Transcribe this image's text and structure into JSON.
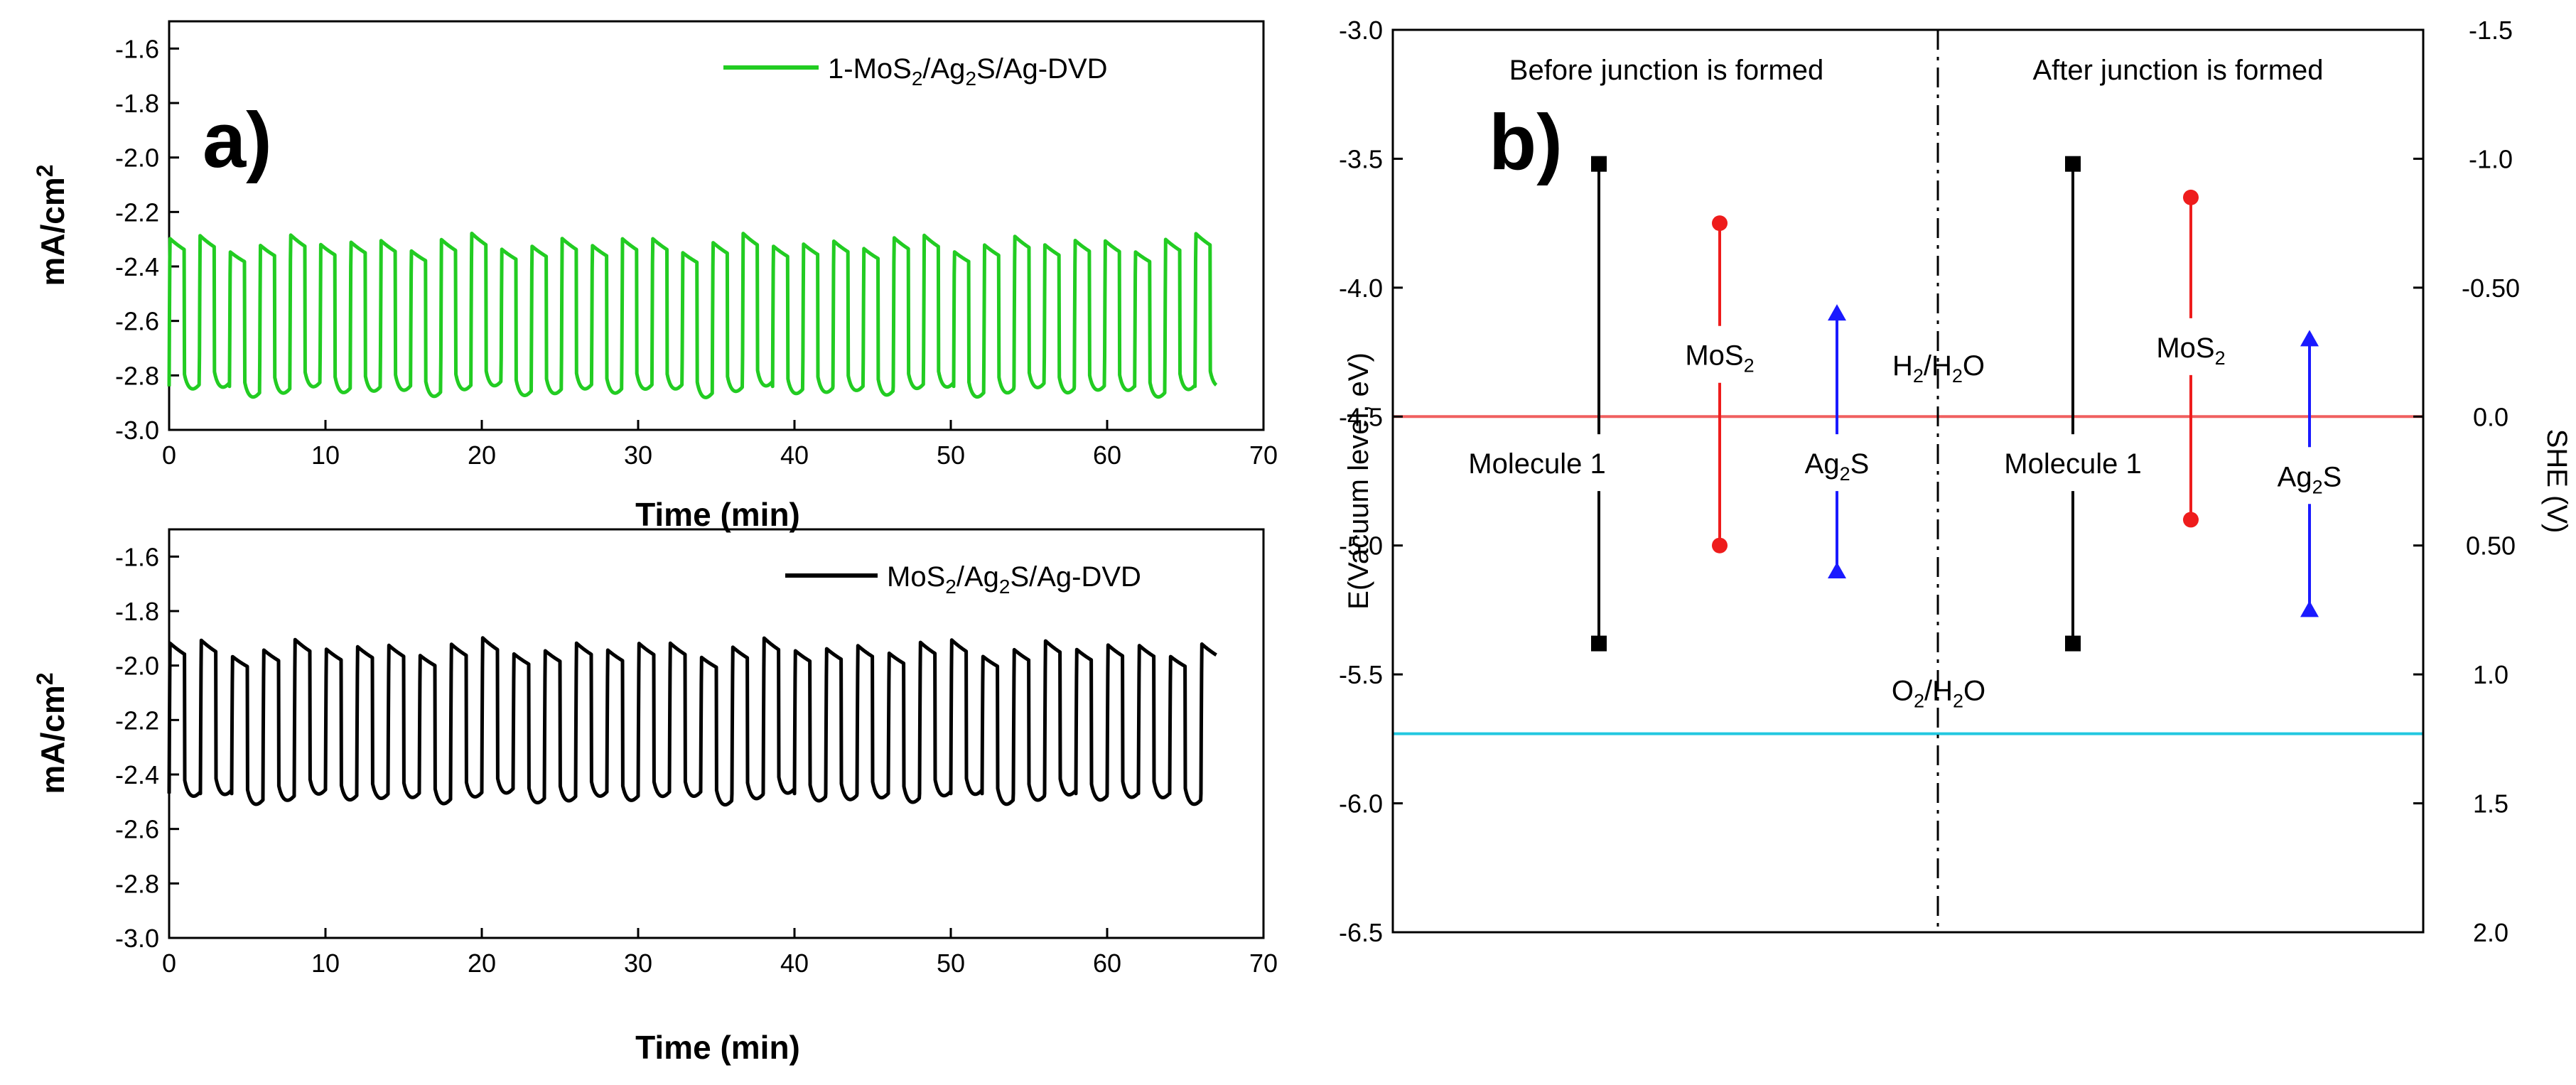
{
  "chart_data": [
    {
      "id": "a_top",
      "panel": "a)",
      "type": "line",
      "xlabel": "Time (min)",
      "ylabel": "mA/cm2",
      "ylabel_parts": [
        "mA/cm",
        "2"
      ],
      "xlim": [
        0,
        70
      ],
      "ylim": [
        -3.0,
        -1.5
      ],
      "xticks": [
        0,
        10,
        20,
        30,
        40,
        50,
        60,
        70
      ],
      "yticks": [
        -3.0,
        -2.8,
        -2.6,
        -2.4,
        -2.2,
        -2.0,
        -1.8,
        -1.6
      ],
      "ytick_labels": [
        "-3.0",
        "-2.8",
        "-2.6",
        "-2.4",
        "-2.2",
        "-2.0",
        "-1.8",
        "-1.6"
      ],
      "legend": "top-right",
      "series": [
        {
          "name": "1-MoS2/Ag2S/Ag-DVD",
          "name_parts": [
            [
              "1-MoS",
              "n"
            ],
            [
              "2",
              "s"
            ],
            [
              "/Ag",
              "n"
            ],
            [
              "2",
              "s"
            ],
            [
              "S/Ag-DVD",
              "n"
            ]
          ],
          "color": "#22cc22",
          "period_min": 1.93,
          "t_start": 0,
          "t_end": 67,
          "dark_level": -2.84,
          "light_level": -2.31
        }
      ]
    },
    {
      "id": "a_bottom",
      "type": "line",
      "xlabel": "Time (min)",
      "ylabel": "mA/cm2",
      "ylabel_parts": [
        "mA/cm",
        "2"
      ],
      "xlim": [
        0,
        70
      ],
      "ylim": [
        -3.0,
        -1.5
      ],
      "xticks": [
        0,
        10,
        20,
        30,
        40,
        50,
        60,
        70
      ],
      "yticks": [
        -3.0,
        -2.8,
        -2.6,
        -2.4,
        -2.2,
        -2.0,
        -1.8,
        -1.6
      ],
      "ytick_labels": [
        "-3.0",
        "-2.8",
        "-2.6",
        "-2.4",
        "-2.2",
        "-2.0",
        "-1.8",
        "-1.6"
      ],
      "legend": "top-right",
      "series": [
        {
          "name": "MoS2/Ag2S/Ag-DVD",
          "name_parts": [
            [
              "MoS",
              "n"
            ],
            [
              "2",
              "s"
            ],
            [
              "/Ag",
              "n"
            ],
            [
              "2",
              "s"
            ],
            [
              "S/Ag-DVD",
              "n"
            ]
          ],
          "color": "#000000",
          "period_min": 2.0,
          "t_start": 0,
          "t_end": 67,
          "dark_level": -2.47,
          "light_level": -1.93
        }
      ]
    },
    {
      "id": "b",
      "panel": "b)",
      "type": "energy-level diagram",
      "ylabel": "E(Vacuum level, eV)",
      "y2label": "SHE (V)",
      "ylim": [
        -6.5,
        -3.0
      ],
      "yticks": [
        -6.5,
        -6.0,
        -5.5,
        -5.0,
        -4.5,
        -4.0,
        -3.5,
        -3.0
      ],
      "ytick_labels": [
        "-6.5",
        "-6.0",
        "-5.5",
        "-5.0",
        "-4.5",
        "-4.0",
        "-3.5",
        "-3.0"
      ],
      "y2ticks": [
        2.0,
        1.5,
        1.0,
        0.5,
        0.0,
        -0.5,
        -1.0,
        -1.5
      ],
      "y2tick_labels": [
        "2.0",
        "1.5",
        "1.0",
        "0.50",
        "0.0",
        "-0.50",
        "-1.0",
        "-1.5"
      ],
      "region_labels": [
        "Before junction is formed",
        "After junction is formed"
      ],
      "reference_lines": [
        {
          "name": "H2/H2O",
          "name_parts": [
            [
              "H",
              "n"
            ],
            [
              "2",
              "s"
            ],
            [
              "/H",
              "n"
            ],
            [
              "2",
              "s"
            ],
            [
              "O",
              "n"
            ]
          ],
          "energy_eV": -4.5,
          "color": "#f06060"
        },
        {
          "name": "O2/H2O",
          "name_parts": [
            [
              "O",
              "n"
            ],
            [
              "2",
              "s"
            ],
            [
              "/H",
              "n"
            ],
            [
              "2",
              "s"
            ],
            [
              "O",
              "n"
            ]
          ],
          "energy_eV": -5.73,
          "color": "#22c8e0"
        }
      ],
      "levels": [
        {
          "name": "Molecule 1",
          "name_parts": [
            [
              "Molecule 1",
              "n"
            ]
          ],
          "region": "before",
          "top": -3.52,
          "bottom": -5.38,
          "color": "#000000",
          "marker": "square"
        },
        {
          "name": "MoS2",
          "name_parts": [
            [
              "MoS",
              "n"
            ],
            [
              "2",
              "s"
            ]
          ],
          "region": "before",
          "top": -3.75,
          "bottom": -5.0,
          "color": "#ee1c1c",
          "marker": "circle"
        },
        {
          "name": "Ag2S",
          "name_parts": [
            [
              "Ag",
              "n"
            ],
            [
              "2",
              "s"
            ],
            [
              "S",
              "n"
            ]
          ],
          "region": "before",
          "top": -4.1,
          "bottom": -5.1,
          "color": "#1a1aff",
          "marker": "triangle"
        },
        {
          "name": "Molecule 1",
          "name_parts": [
            [
              "Molecule 1",
              "n"
            ]
          ],
          "region": "after",
          "top": -3.52,
          "bottom": -5.38,
          "color": "#000000",
          "marker": "square"
        },
        {
          "name": "MoS2",
          "name_parts": [
            [
              "MoS",
              "n"
            ],
            [
              "2",
              "s"
            ]
          ],
          "region": "after",
          "top": -3.65,
          "bottom": -4.9,
          "color": "#ee1c1c",
          "marker": "circle"
        },
        {
          "name": "Ag2S",
          "name_parts": [
            [
              "Ag",
              "n"
            ],
            [
              "2",
              "s"
            ],
            [
              "S",
              "n"
            ]
          ],
          "region": "after",
          "top": -4.2,
          "bottom": -5.25,
          "color": "#1a1aff",
          "marker": "triangle"
        }
      ]
    }
  ]
}
